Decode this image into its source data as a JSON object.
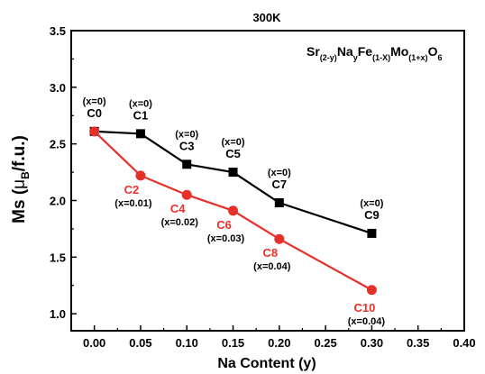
{
  "chart_data": {
    "type": "line",
    "title": "300K",
    "xlabel": "Na Content (y)",
    "ylabel": {
      "base": "Ms (",
      "mu": "μ",
      "mu_sub": "B",
      "rest": "/f.u.)"
    },
    "xlim": [
      -0.025,
      0.4
    ],
    "ylim": [
      0.85,
      3.5
    ],
    "x_ticks": [
      "0.00",
      "0.05",
      "0.10",
      "0.15",
      "0.20",
      "0.25",
      "0.30",
      "0.35",
      "0.40"
    ],
    "y_ticks": [
      "1.0",
      "1.5",
      "2.0",
      "2.5",
      "3.0",
      "3.5"
    ],
    "grid": false,
    "annotation": {
      "formula_parts": [
        {
          "t": "Sr",
          "sub": false
        },
        {
          "t": "(2-y)",
          "sub": true
        },
        {
          "t": "Na",
          "sub": false
        },
        {
          "t": "y",
          "sub": true
        },
        {
          "t": "Fe",
          "sub": false
        },
        {
          "t": "(1-X)",
          "sub": true
        },
        {
          "t": "Mo",
          "sub": false
        },
        {
          "t": "(1+x)",
          "sub": true
        },
        {
          "t": "O",
          "sub": false
        },
        {
          "t": "6",
          "sub": true
        }
      ]
    },
    "series": [
      {
        "color": "#000000",
        "marker": "square",
        "x": [
          0.0,
          0.05,
          0.1,
          0.15,
          0.2,
          0.3
        ],
        "y": [
          2.61,
          2.59,
          2.32,
          2.25,
          1.98,
          1.71
        ],
        "labels": [
          "C0",
          "C1",
          "C3",
          "C5",
          "C7",
          "C9"
        ],
        "sublabels": [
          "(x=0)",
          "(x=0)",
          "(x=0)",
          "(x=0)",
          "(x=0)",
          "(x=0)"
        ]
      },
      {
        "color": "#e8302a",
        "marker": "circle",
        "x": [
          0.0,
          0.05,
          0.1,
          0.15,
          0.2,
          0.3
        ],
        "y": [
          2.61,
          2.22,
          2.05,
          1.91,
          1.66,
          1.21
        ],
        "labels": [
          "",
          "C2",
          "C4",
          "C6",
          "C8",
          "C10"
        ],
        "sublabels": [
          "",
          "(x=0.01)",
          "(x=0.02)",
          "(x=0.03)",
          "(x=0.04)",
          "(x=0.04)"
        ]
      }
    ]
  }
}
